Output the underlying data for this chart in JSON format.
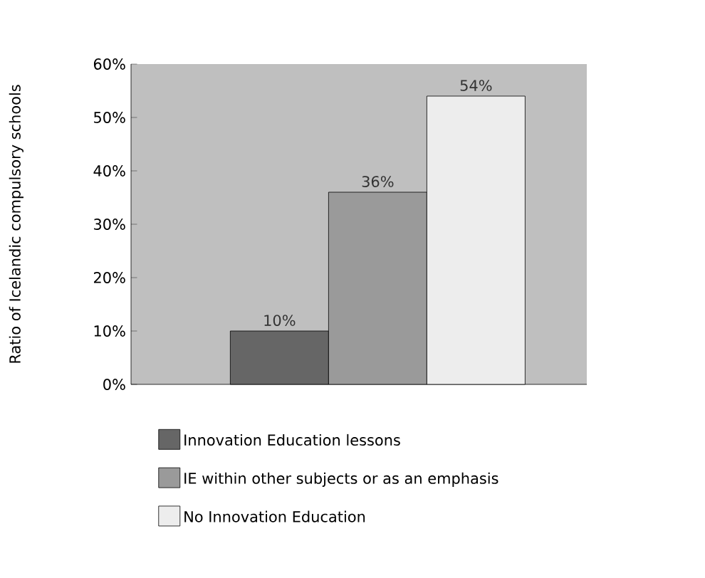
{
  "chart_data": {
    "type": "bar",
    "ylabel": "Ratio of Icelandic compulsory schools",
    "categories": [
      null
    ],
    "series": [
      {
        "name": "Innovation Education lessons",
        "color": "#666666",
        "values": [
          10
        ],
        "value_labels": [
          "10%"
        ]
      },
      {
        "name": "IE within other subjects or as an emphasis",
        "color": "#9a9a9a",
        "values": [
          36
        ],
        "value_labels": [
          "36%"
        ]
      },
      {
        "name": "No Innovation Education",
        "color": "#ededed",
        "values": [
          54
        ],
        "value_labels": [
          "54%"
        ]
      }
    ],
    "ylim": [
      0,
      60
    ],
    "yticks": [
      {
        "value": 0,
        "label": "0%"
      },
      {
        "value": 10,
        "label": "10%"
      },
      {
        "value": 20,
        "label": "20%"
      },
      {
        "value": 30,
        "label": "30%"
      },
      {
        "value": 40,
        "label": "40%"
      },
      {
        "value": 50,
        "label": "50%"
      },
      {
        "value": 60,
        "label": "60%"
      }
    ],
    "legend": "bottom"
  }
}
